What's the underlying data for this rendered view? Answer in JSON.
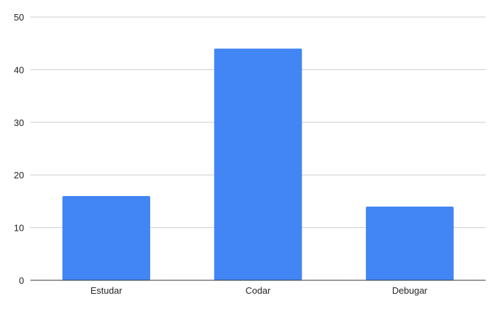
{
  "chart_data": {
    "type": "bar",
    "title": "",
    "xlabel": "",
    "ylabel": "",
    "categories": [
      "Estudar",
      "Codar",
      "Debugar"
    ],
    "values": [
      16,
      44,
      14
    ],
    "ylim": [
      0,
      50
    ],
    "yticks": [
      0,
      10,
      20,
      30,
      40,
      50
    ],
    "grid": true,
    "legend": "none",
    "bar_color": "#4285f4",
    "grid_color": "#cccccc",
    "axis_color": "#333333"
  }
}
